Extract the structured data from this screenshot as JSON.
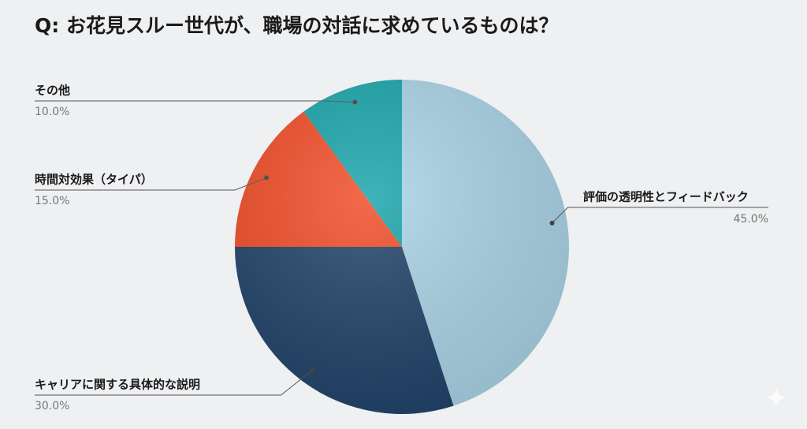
{
  "chart_data": {
    "type": "pie",
    "title": "Q: お花見スルー世代が、職場の対話に求めているものは？",
    "categories": [
      "評価の透明性とフィードバック",
      "キャリアに関する具体的な説明",
      "時間対効果（タイパ）",
      "その他"
    ],
    "values": [
      45,
      30,
      15,
      10
    ],
    "value_labels": [
      "45.0%",
      "30.0%",
      "15.0%",
      "10.0%"
    ],
    "colors": [
      "#a9d3e6",
      "#1f4168",
      "#f04a24",
      "#15a3a8"
    ]
  }
}
